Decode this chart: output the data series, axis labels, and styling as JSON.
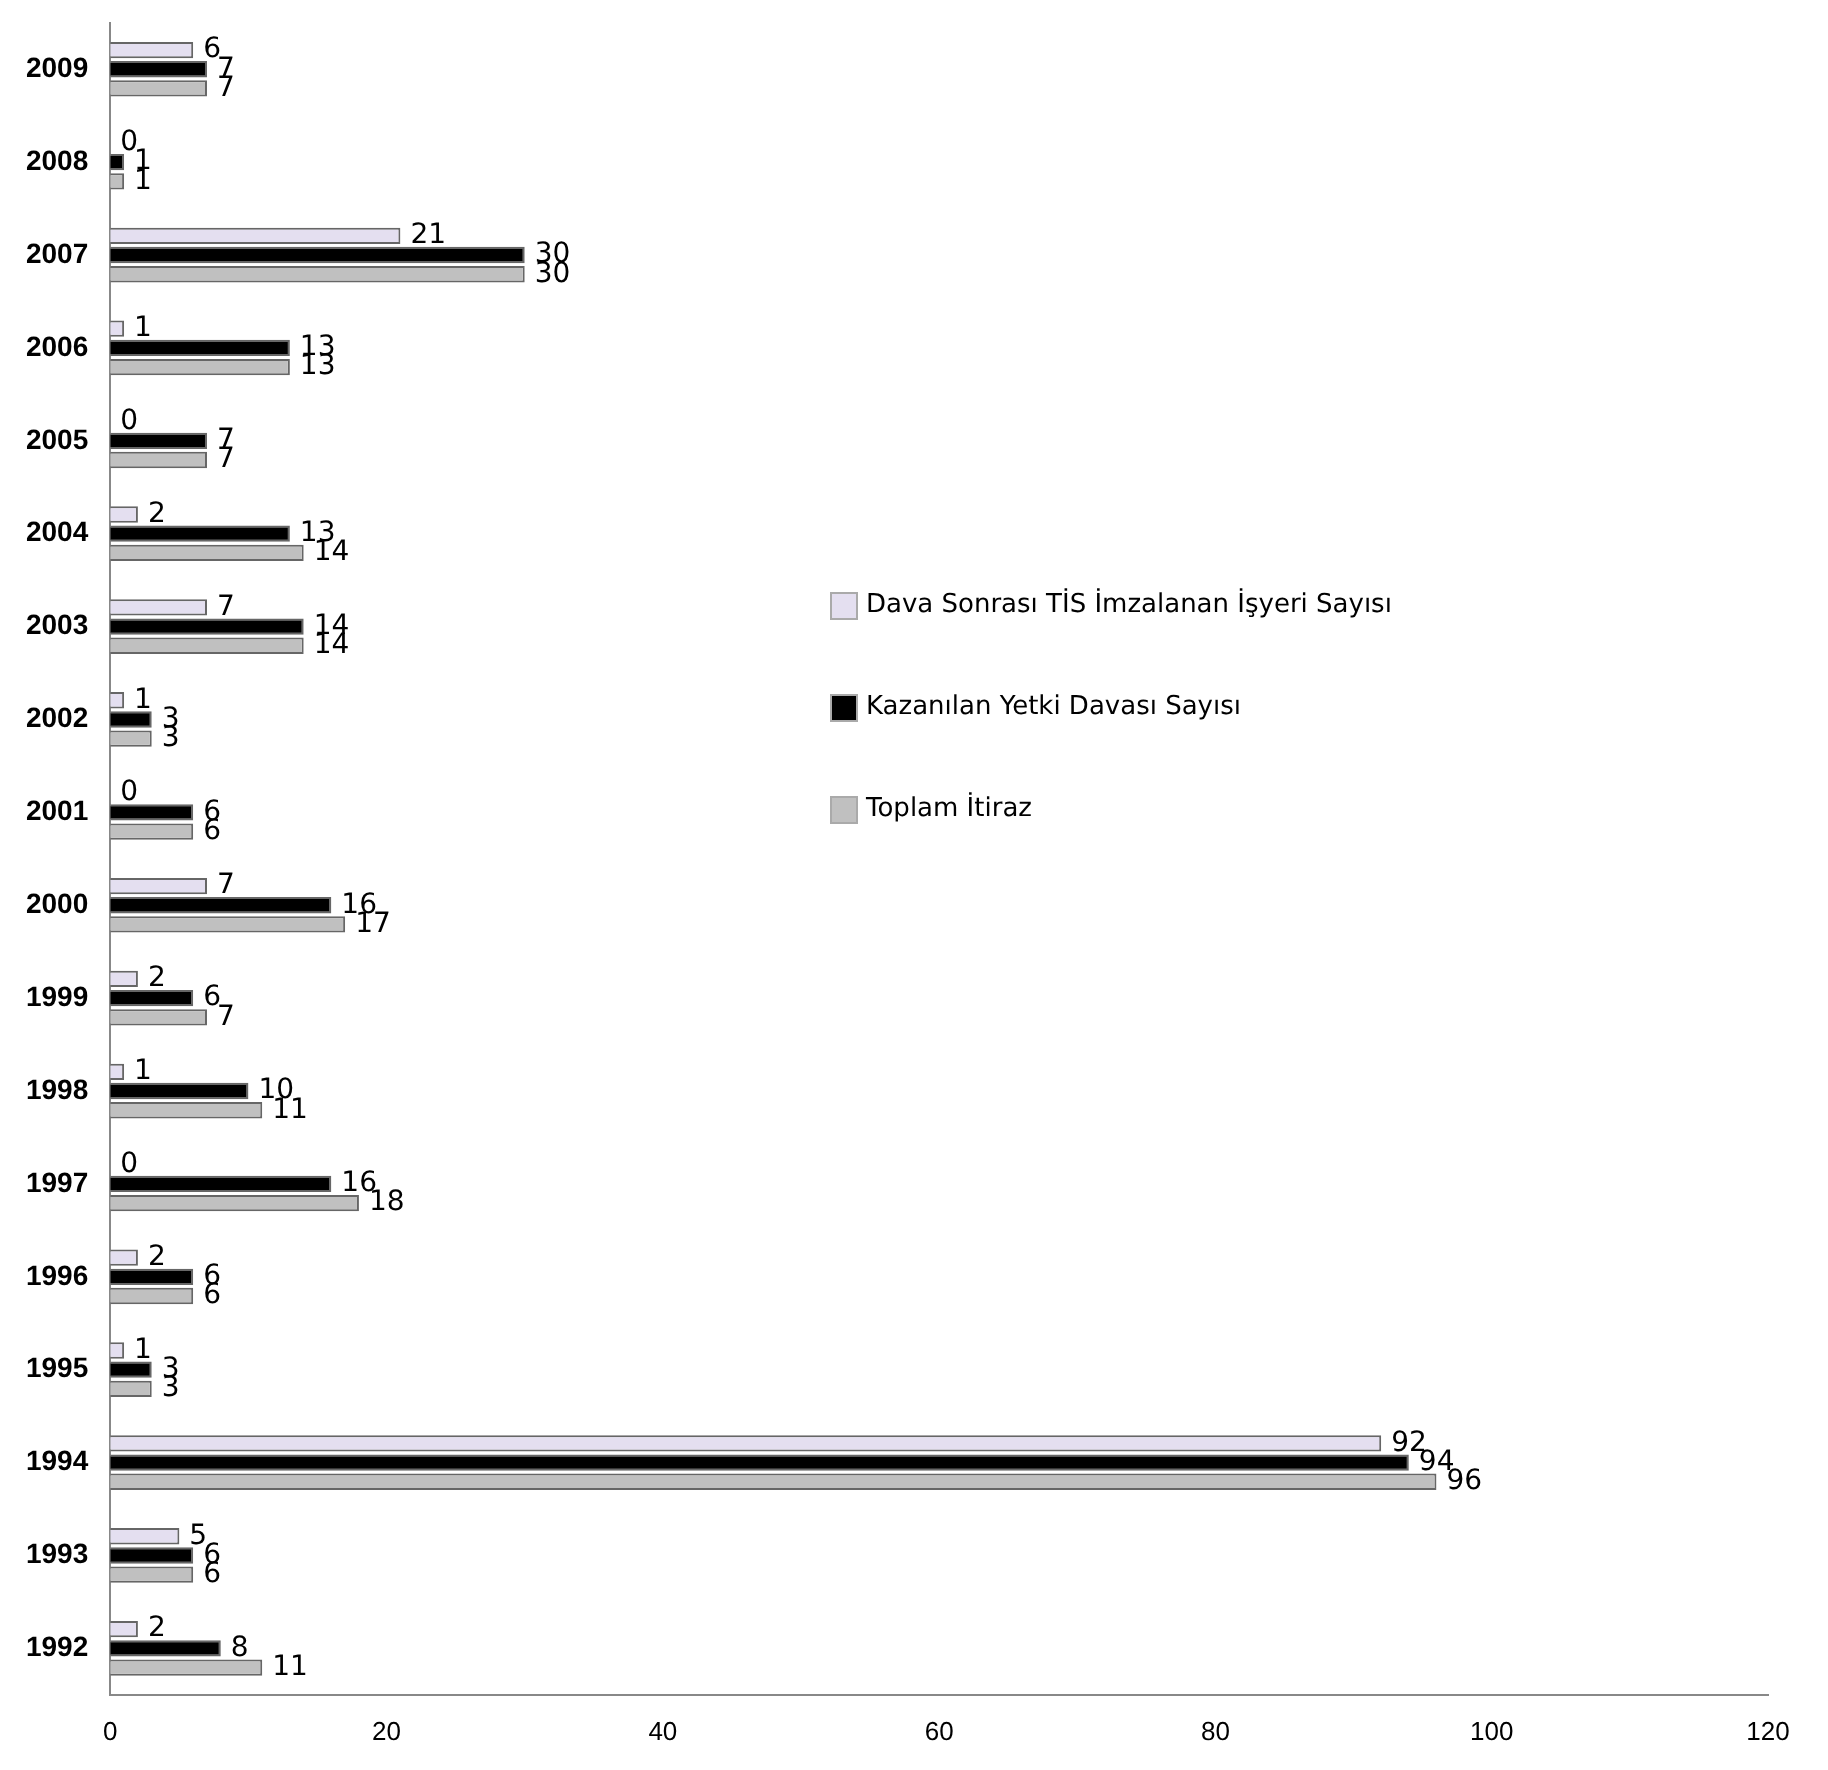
{
  "chart_data": {
    "type": "bar",
    "orientation": "horizontal",
    "categories": [
      "2009",
      "2008",
      "2007",
      "2006",
      "2005",
      "2004",
      "2003",
      "2002",
      "2001",
      "2000",
      "1999",
      "1998",
      "1997",
      "1996",
      "1995",
      "1994",
      "1993",
      "1992"
    ],
    "series": [
      {
        "name": "Dava Sonrası TİS İmzalanan İşyeri Sayısı",
        "color": "#e4dff0",
        "values": [
          6,
          0,
          21,
          1,
          0,
          2,
          7,
          1,
          0,
          7,
          2,
          1,
          0,
          2,
          1,
          92,
          5,
          2
        ]
      },
      {
        "name": "Kazanılan Yetki Davası Sayısı",
        "color": "#000000",
        "values": [
          7,
          1,
          30,
          13,
          7,
          13,
          14,
          3,
          6,
          16,
          6,
          10,
          16,
          6,
          3,
          94,
          6,
          8
        ]
      },
      {
        "name": "Toplam İtiraz",
        "color": "#c0c0c0",
        "values": [
          7,
          1,
          30,
          13,
          7,
          14,
          14,
          3,
          6,
          17,
          7,
          11,
          18,
          6,
          3,
          96,
          6,
          11
        ]
      }
    ],
    "xlim": [
      0,
      120
    ],
    "xticks": [
      0,
      20,
      40,
      60,
      80,
      100,
      120
    ],
    "grid": false,
    "legend": "right",
    "data_labels": true
  }
}
